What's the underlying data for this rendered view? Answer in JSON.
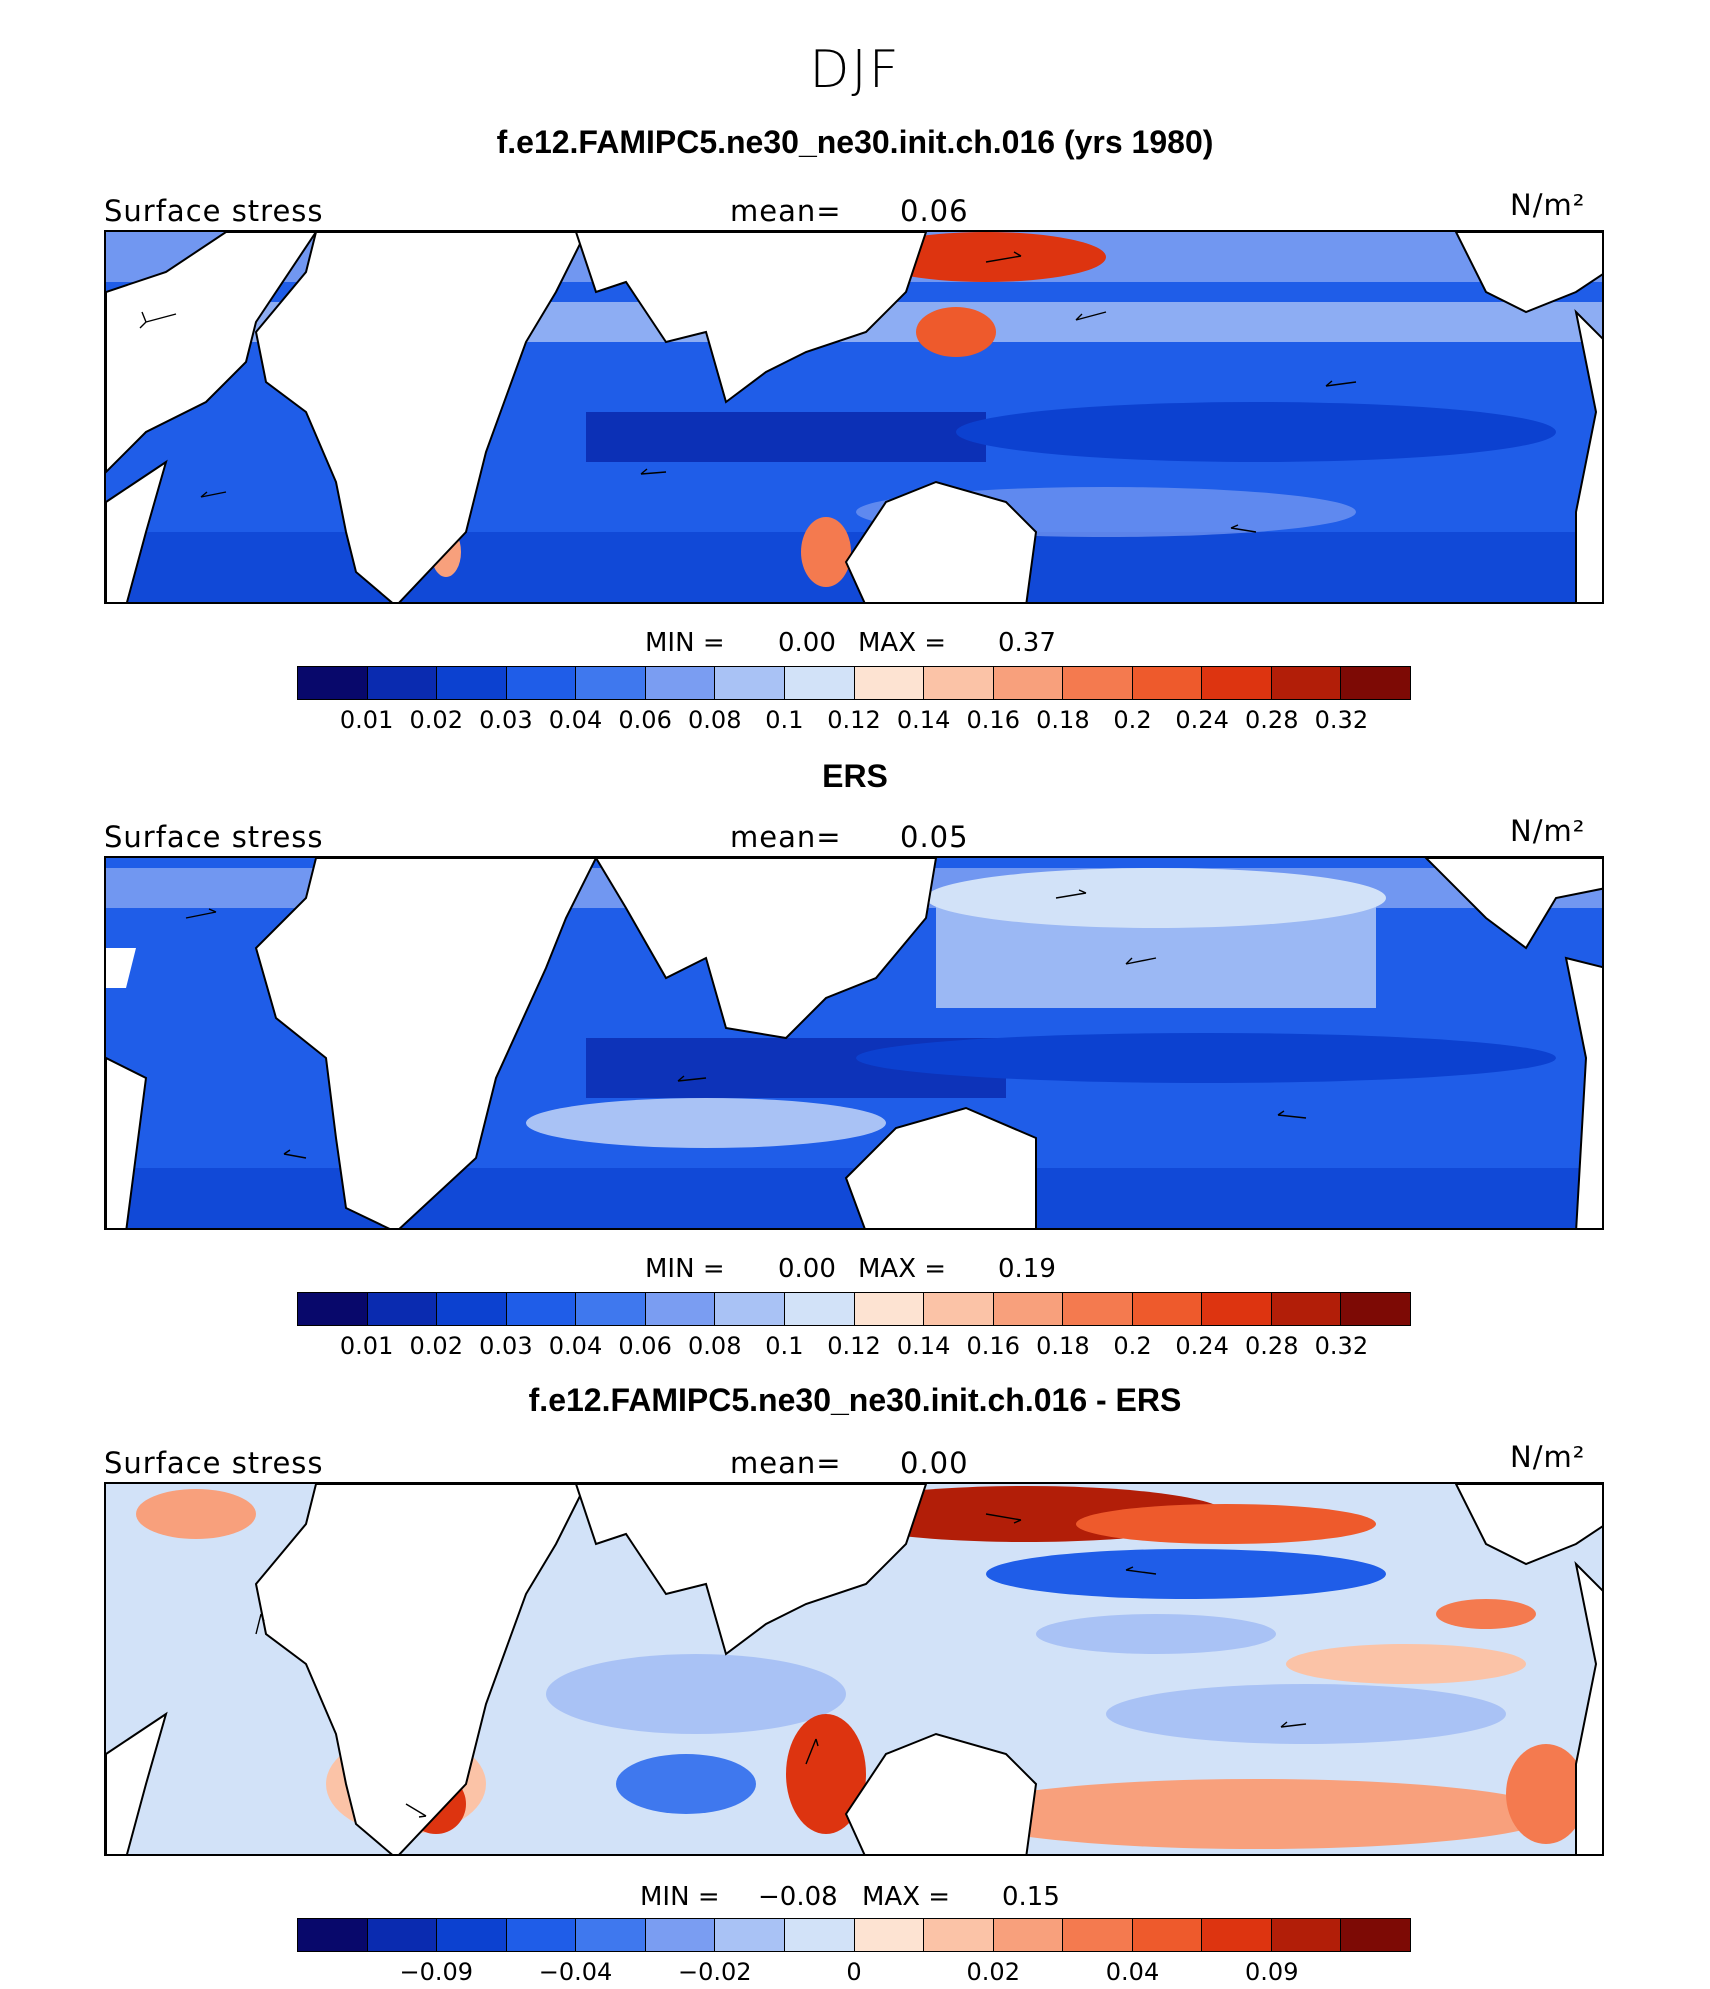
{
  "figure": {
    "season": "DJF",
    "panels": [
      {
        "title": "f.e12.FAMIPC5.ne30_ne30.init.ch.016 (yrs 1980)",
        "left_label": "Surface stress",
        "mean_label": "mean=",
        "mean_value": "0.06",
        "units": "N/m²",
        "min_label": "MIN =",
        "min_value": "0.00",
        "max_label": "MAX =",
        "max_value": "0.37"
      },
      {
        "title": "ERS",
        "left_label": "Surface stress",
        "mean_label": "mean=",
        "mean_value": "0.05",
        "units": "N/m²",
        "min_label": "MIN =",
        "min_value": "0.00",
        "max_label": "MAX =",
        "max_value": "0.19"
      },
      {
        "title": "f.e12.FAMIPC5.ne30_ne30.init.ch.016 - ERS",
        "left_label": "Surface stress",
        "mean_label": "mean=",
        "mean_value": "0.00",
        "units": "N/m²",
        "min_label": "MIN =",
        "min_value": "−0.08",
        "max_label": "MAX =",
        "max_value": "0.15"
      }
    ]
  },
  "colorbars": {
    "colors": [
      "#08086b",
      "#0a2bb0",
      "#0c41d0",
      "#1f5de8",
      "#3f78ee",
      "#7a9df2",
      "#a9c2f5",
      "#d2e2f8",
      "#fde3d2",
      "#fbc3a7",
      "#f8a07c",
      "#f47a4f",
      "#ee5a2c",
      "#dd3410",
      "#b21e08",
      "#7d0a05"
    ],
    "abs_ticks": [
      "0.01",
      "0.02",
      "0.03",
      "0.04",
      "0.06",
      "0.08",
      "0.1",
      "0.12",
      "0.14",
      "0.16",
      "0.18",
      "0.2",
      "0.24",
      "0.28",
      "0.32"
    ],
    "diff_ticks": [
      "−0.09",
      "−0.04",
      "−0.02",
      "0",
      "0.02",
      "0.04",
      "0.09"
    ]
  },
  "chart_data": [
    {
      "type": "heatmap",
      "title": "f.e12.FAMIPC5.ne30_ne30.init.ch.016 (yrs 1980)",
      "variable": "Surface stress",
      "units": "N/m²",
      "mean": 0.06,
      "min": 0.0,
      "max": 0.37,
      "contour_levels": [
        0.01,
        0.02,
        0.03,
        0.04,
        0.06,
        0.08,
        0.1,
        0.12,
        0.14,
        0.16,
        0.18,
        0.2,
        0.24,
        0.28,
        0.32
      ],
      "vectors": "wind stress arrows overlaid"
    },
    {
      "type": "heatmap",
      "title": "ERS",
      "variable": "Surface stress",
      "units": "N/m²",
      "mean": 0.05,
      "min": 0.0,
      "max": 0.19,
      "contour_levels": [
        0.01,
        0.02,
        0.03,
        0.04,
        0.06,
        0.08,
        0.1,
        0.12,
        0.14,
        0.16,
        0.18,
        0.2,
        0.24,
        0.28,
        0.32
      ],
      "vectors": "wind stress arrows overlaid"
    },
    {
      "type": "heatmap",
      "title": "f.e12.FAMIPC5.ne30_ne30.init.ch.016 - ERS",
      "variable": "Surface stress",
      "units": "N/m²",
      "mean": 0.0,
      "min": -0.08,
      "max": 0.15,
      "contour_levels": [
        -0.09,
        -0.04,
        -0.02,
        0,
        0.02,
        0.04,
        0.09
      ],
      "vectors": "wind stress difference arrows overlaid"
    }
  ]
}
